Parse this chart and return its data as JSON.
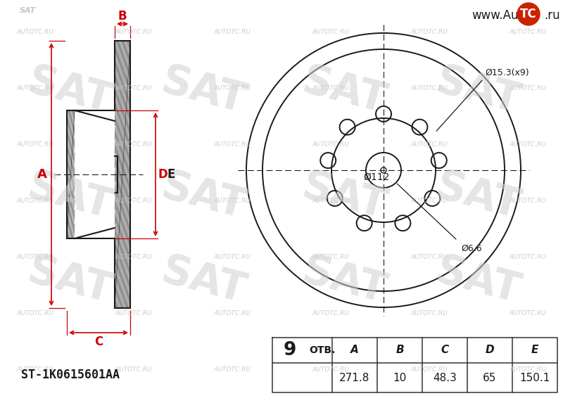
{
  "bg_color": "#ffffff",
  "part_number": "ST-1K0615601AA",
  "holes_count": "9",
  "otv_label": "ОТВ.",
  "table_headers": [
    "A",
    "B",
    "C",
    "D",
    "E"
  ],
  "table_values": [
    "271.8",
    "10",
    "48.3",
    "65",
    "150.1"
  ],
  "dim_A_label": "A",
  "dim_B_label": "B",
  "dim_C_label": "C",
  "dim_D_label": "D",
  "dim_E_label": "E",
  "hole_label": "Ø15.3(x9)",
  "pcd_label": "Ø112",
  "center_hole_label": "Ø6.6",
  "red_color": "#cc0000",
  "line_color": "#1a1a1a",
  "table_border_color": "#333333",
  "wm_text_color": "#c8c8c8",
  "wm_sat_color": "#d0d0d0",
  "tc_red": "#cc2200",
  "tc_white": "#ffffff"
}
